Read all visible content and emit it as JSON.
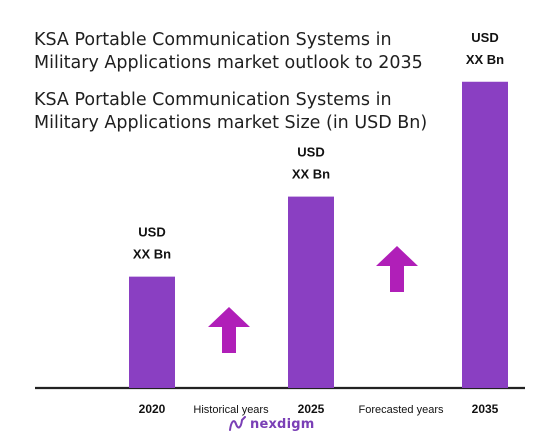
{
  "titles": {
    "line1": "KSA Portable Communication Systems in",
    "line2": "Military Applications market  outlook to 2035",
    "line3": "KSA Portable Communication Systems in",
    "line4": "Military Applications market Size (in USD Bn)"
  },
  "colors": {
    "bar": "#8a3fc2",
    "arrow": "#b01fb8",
    "baseline": "#222222"
  },
  "brand": {
    "logo_text": "nexdigm",
    "logo_icon": "nexdigm-n-icon"
  },
  "chart_data": {
    "type": "bar",
    "categories": [
      "2020",
      "2025",
      "2035"
    ],
    "relative_values": [
      0.32,
      0.55,
      0.88
    ],
    "data_labels": [
      [
        "USD",
        "XX Bn"
      ],
      [
        "USD",
        "XX Bn"
      ],
      [
        "USD",
        "XX Bn"
      ]
    ],
    "period_labels": [
      "Historical years",
      "Forecasted years"
    ],
    "xlabel": "",
    "ylabel": "",
    "grid": false,
    "legend": "none"
  }
}
